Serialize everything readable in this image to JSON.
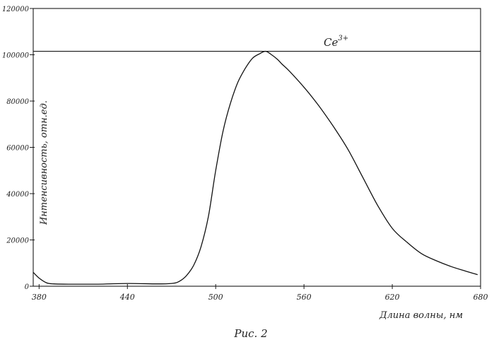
{
  "chart_data": {
    "type": "line",
    "title": "",
    "xlabel": "Длина волны, нм",
    "ylabel": "Интенсивность, отн.ед.",
    "caption": "Рис. 2",
    "annotation": {
      "text": "Ce",
      "sup": "3+"
    },
    "xlim": [
      376,
      680
    ],
    "ylim": [
      0,
      120000
    ],
    "x_ticks": [
      "380",
      "440",
      "500",
      "560",
      "620",
      "680"
    ],
    "x_tick_values": [
      380,
      440,
      500,
      560,
      620,
      680
    ],
    "y_ticks": [
      "0",
      "20000",
      "40000",
      "60000",
      "80000",
      "100000",
      "120000"
    ],
    "y_tick_values": [
      0,
      20000,
      40000,
      60000,
      80000,
      100000,
      120000
    ],
    "reference_line": {
      "y": 101500
    },
    "grid": false,
    "legend": "none",
    "series": [
      {
        "x": [
          376,
          380,
          385,
          390,
          400,
          420,
          440,
          460,
          470,
          475,
          480,
          485,
          490,
          495,
          500,
          505,
          510,
          515,
          520,
          525,
          530,
          534,
          538,
          542,
          545,
          550,
          560,
          570,
          580,
          590,
          600,
          610,
          620,
          630,
          640,
          650,
          660,
          670,
          678
        ],
        "values": [
          6000,
          3500,
          1500,
          1000,
          900,
          900,
          1200,
          1000,
          1200,
          2000,
          4500,
          9000,
          17000,
          30000,
          50000,
          67000,
          79000,
          88000,
          94000,
          98500,
          100500,
          101500,
          100000,
          98000,
          96000,
          93000,
          86000,
          78000,
          69000,
          59000,
          47000,
          35000,
          25000,
          19000,
          14000,
          11000,
          8500,
          6500,
          5000
        ]
      }
    ]
  }
}
